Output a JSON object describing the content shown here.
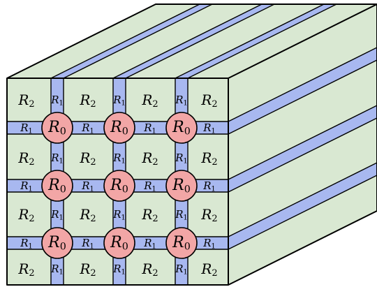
{
  "colors": {
    "green": "#d9e8d2",
    "blue": "#a8b8f0",
    "red": "#f2a6a6",
    "edge": "#000000"
  },
  "labels": {
    "R0": {
      "base": "R",
      "sub": "0"
    },
    "R1": {
      "base": "R",
      "sub": "1"
    },
    "R2": {
      "base": "R",
      "sub": "2"
    }
  }
}
